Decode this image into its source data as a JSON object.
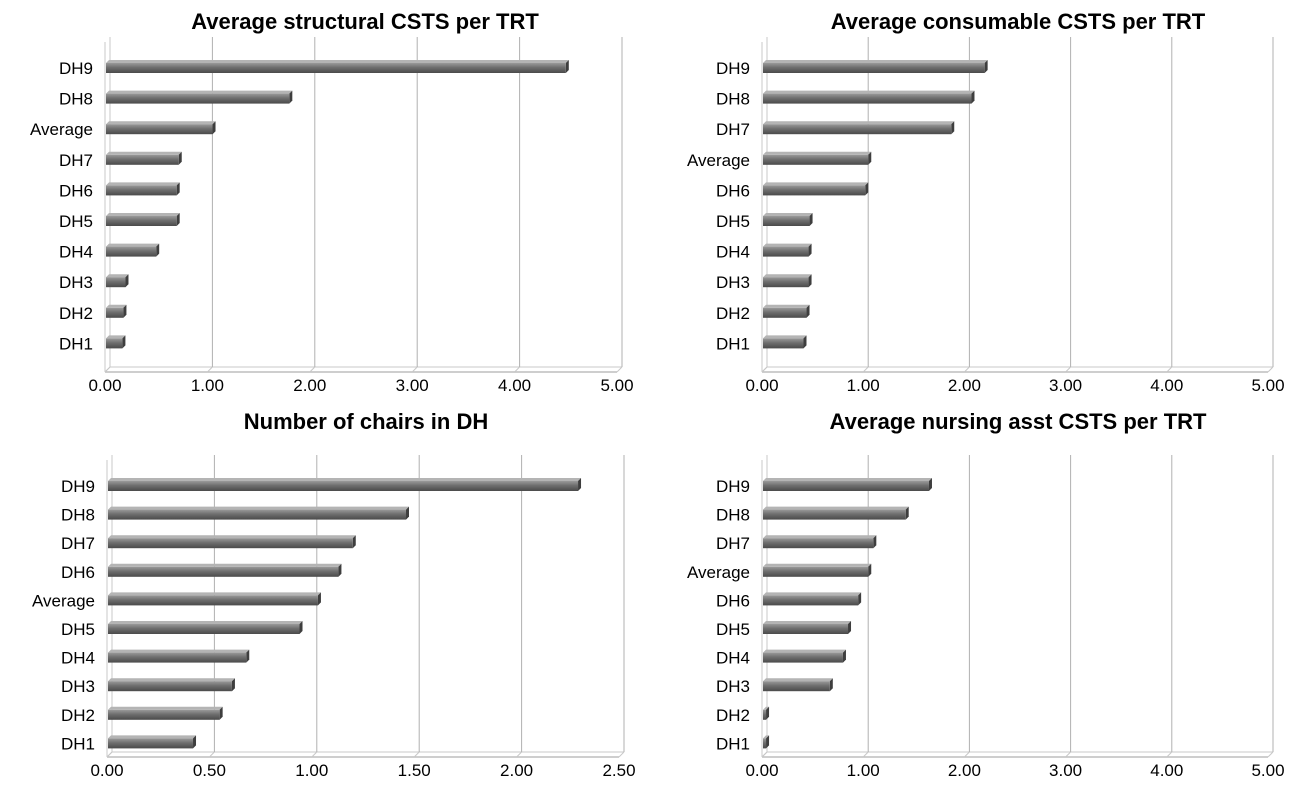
{
  "chart_data": [
    {
      "type": "bar",
      "orientation": "horizontal",
      "title": "Average structural CSTS per TRT",
      "categories": [
        "DH9",
        "DH8",
        "Average",
        "DH7",
        "DH6",
        "DH5",
        "DH4",
        "DH3",
        "DH2",
        "DH1"
      ],
      "values": [
        4.5,
        1.8,
        1.05,
        0.72,
        0.7,
        0.7,
        0.5,
        0.2,
        0.18,
        0.17
      ],
      "xlim": [
        0,
        5
      ],
      "ticks": [
        "0.00",
        "1.00",
        "2.00",
        "3.00",
        "4.00",
        "5.00"
      ],
      "grid": true
    },
    {
      "type": "bar",
      "orientation": "horizontal",
      "title": "Average consumable CSTS per TRT",
      "categories": [
        "DH9",
        "DH8",
        "DH7",
        "Average",
        "DH6",
        "DH5",
        "DH4",
        "DH3",
        "DH2",
        "DH1"
      ],
      "values": [
        2.2,
        2.07,
        1.87,
        1.05,
        1.02,
        0.47,
        0.46,
        0.46,
        0.44,
        0.41
      ],
      "xlim": [
        0,
        5
      ],
      "ticks": [
        "0.00",
        "1.00",
        "2.00",
        "3.00",
        "4.00",
        "5.00"
      ],
      "grid": true
    },
    {
      "type": "bar",
      "orientation": "horizontal",
      "title": "Number of chairs in DH",
      "categories": [
        "DH9",
        "DH8",
        "DH7",
        "DH6",
        "Average",
        "DH5",
        "DH4",
        "DH3",
        "DH2",
        "DH1"
      ],
      "values": [
        2.3,
        1.46,
        1.2,
        1.13,
        1.03,
        0.94,
        0.68,
        0.61,
        0.55,
        0.42
      ],
      "xlim": [
        0,
        2.5
      ],
      "ticks": [
        "0.00",
        "0.50",
        "1.00",
        "1.50",
        "2.00",
        "2.50"
      ],
      "grid": true
    },
    {
      "type": "bar",
      "orientation": "horizontal",
      "title": "Average nursing asst CSTS per TRT",
      "categories": [
        "DH9",
        "DH8",
        "DH7",
        "Average",
        "DH6",
        "DH5",
        "DH4",
        "DH3",
        "DH2",
        "DH1"
      ],
      "values": [
        1.65,
        1.42,
        1.1,
        1.05,
        0.95,
        0.85,
        0.8,
        0.67,
        0.04,
        0.04
      ],
      "xlim": [
        0,
        5
      ],
      "ticks": [
        "0.00",
        "1.00",
        "2.00",
        "3.00",
        "4.00",
        "5.00"
      ],
      "grid": true
    }
  ]
}
